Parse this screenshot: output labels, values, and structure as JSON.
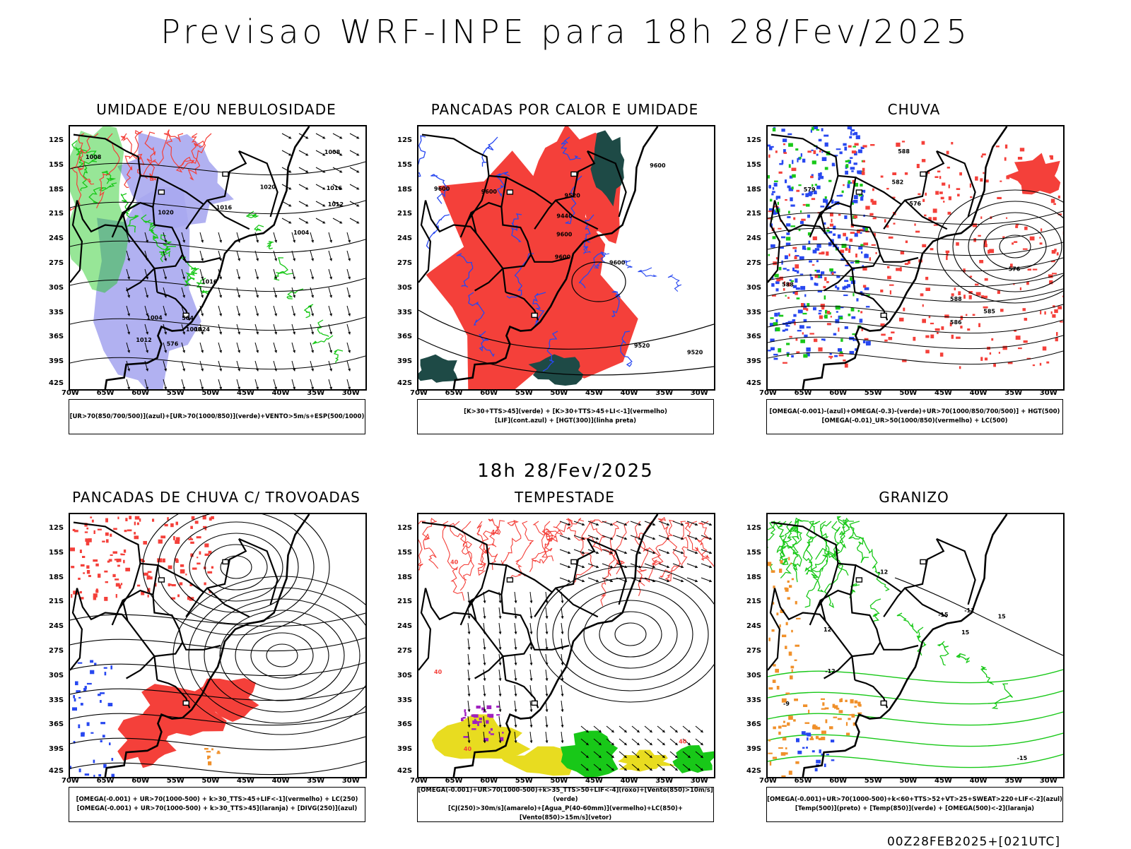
{
  "title": "Previsao WRF-INPE  para 18h 28/Fev/2025",
  "mid_title": "18h 28/Fev/2025",
  "footer": "00Z28FEB2025+[021UTC]",
  "colors": {
    "red": "#f4403a",
    "green": "#18c818",
    "blue": "#2848f0",
    "lavender": "#a8a8f0",
    "teal": "#1e4a46",
    "yellow": "#e8dc20",
    "orange": "#f0902a",
    "purple": "#a020c0"
  },
  "chart_data": [
    {
      "type": "map",
      "title": "UMIDADE E/OU NEBULOSIDADE",
      "legend": [
        "[UR>70(850/700/500)](azul)+[UR>70(1000/850)](verde)+VENTO>5m/s+ESP(500/1000)"
      ],
      "ylabels": [
        "12S",
        "15S",
        "18S",
        "21S",
        "24S",
        "27S",
        "30S",
        "33S",
        "36S",
        "39S",
        "42S"
      ],
      "xlabels": [
        "70W",
        "65W",
        "60W",
        "55W",
        "50W",
        "45W",
        "40W",
        "35W",
        "30W"
      ],
      "contour_labels": [
        "1008",
        "1008",
        "1012",
        "1016",
        "1016",
        "1016",
        "1020",
        "1024",
        "1004",
        "1008",
        "1004",
        "1020",
        "576",
        "564",
        "1012"
      ]
    },
    {
      "type": "map",
      "title": "PANCADAS POR CALOR E UMIDADE",
      "legend": [
        "[K>30+TTS>45](verde) + [K>30+TTS>45+LI<-1](vermelho)",
        "[LIF](cont.azul) + [HGT(300)](linha preta)"
      ],
      "ylabels": [
        "12S",
        "15S",
        "18S",
        "21S",
        "24S",
        "27S",
        "30S",
        "33S",
        "36S",
        "39S",
        "42S"
      ],
      "xlabels": [
        "70W",
        "65W",
        "60W",
        "55W",
        "50W",
        "45W",
        "40W",
        "35W",
        "30W"
      ],
      "contour_labels": [
        "9600",
        "9600",
        "9600",
        "9520",
        "9600",
        "9600",
        "9520",
        "9440",
        "9600",
        "9520"
      ]
    },
    {
      "type": "map",
      "title": "CHUVA",
      "legend": [
        "[OMEGA(-0.001)-(azul)+OMEGA(-0.3)-(verde)+UR>70(1000/850/700/500)] + HGT(500)",
        "[OMEGA(-0.01)_UR>50(1000/850)(vermelho) + LC(500)"
      ],
      "ylabels": [
        "12S",
        "15S",
        "18S",
        "21S",
        "24S",
        "27S",
        "30S",
        "33S",
        "36S",
        "39S",
        "42S"
      ],
      "xlabels": [
        "70W",
        "65W",
        "60W",
        "55W",
        "50W",
        "45W",
        "40W",
        "35W",
        "30W"
      ],
      "contour_labels": [
        "588",
        "588",
        "588",
        "586",
        "585",
        "582",
        "579",
        "576",
        "576"
      ]
    },
    {
      "type": "map",
      "title": "PANCADAS DE CHUVA C/ TROVOADAS",
      "legend": [
        "[OMEGA(-0.001) + UR>70(1000-500) + k>30_TTS>45+LIF<-1](vermelho) + LC(250)",
        "[OMEGA(-0.001) + UR>70(1000-500) + k>30_TTS>45](laranja) + [DIVG(250)](azul)"
      ],
      "ylabels": [
        "12S",
        "15S",
        "18S",
        "21S",
        "24S",
        "27S",
        "30S",
        "33S",
        "36S",
        "39S",
        "42S"
      ],
      "xlabels": [
        "70W",
        "65W",
        "60W",
        "55W",
        "50W",
        "45W",
        "40W",
        "35W",
        "30W"
      ],
      "contour_labels": []
    },
    {
      "type": "map",
      "title": "TEMPESTADE",
      "legend": [
        "[OMEGA(-0.001)+UR>70(1000-500)+k>35_TTS>50+LIF<-4](roxo)+[Vento(850)>10m/s](verde)",
        "[CJ(250)>30m/s](amarelo)+[Agua_P(40-60mm)](vermelho)+LC(850)+[Vento(850)>15m/s](vetor)"
      ],
      "ylabels": [
        "12S",
        "15S",
        "18S",
        "21S",
        "24S",
        "27S",
        "30S",
        "33S",
        "36S",
        "39S",
        "42S"
      ],
      "xlabels": [
        "70W",
        "65W",
        "60W",
        "55W",
        "50W",
        "45W",
        "40W",
        "35W",
        "30W"
      ],
      "contour_labels": [
        "40",
        "40",
        "40",
        "40",
        "40"
      ]
    },
    {
      "type": "map",
      "title": "GRANIZO",
      "legend": [
        "[OMEGA(-0.001)+UR>70(1000-500)+k<60+TTS>52+VT>25+SWEAT>220+LIF<-2](azul)",
        "[Temp(500)](preto) + [Temp(850)](verde) + [OMEGA(500)<-2](laranja)"
      ],
      "ylabels": [
        "12S",
        "15S",
        "18S",
        "21S",
        "24S",
        "27S",
        "30S",
        "33S",
        "36S",
        "39S",
        "42S"
      ],
      "xlabels": [
        "70W",
        "65W",
        "60W",
        "55W",
        "50W",
        "45W",
        "40W",
        "35W",
        "30W"
      ],
      "contour_labels": [
        "-9",
        "-12",
        "-15",
        "-12",
        "-15",
        "-12",
        "15",
        "15",
        "12"
      ]
    }
  ]
}
